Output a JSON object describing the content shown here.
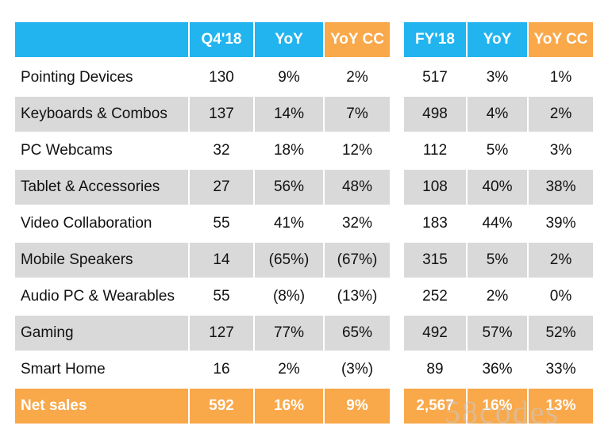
{
  "table": {
    "left_headers": [
      "Q4'18",
      "YoY",
      "YoY CC"
    ],
    "right_headers": [
      "FY'18",
      "YoY",
      "YoY CC"
    ],
    "rows": [
      [
        "Pointing Devices",
        "130",
        "9%",
        "2%",
        "517",
        "3%",
        "1%"
      ],
      [
        "Keyboards & Combos",
        "137",
        "14%",
        "7%",
        "498",
        "4%",
        "2%"
      ],
      [
        "PC Webcams",
        "32",
        "18%",
        "12%",
        "112",
        "5%",
        "3%"
      ],
      [
        "Tablet & Accessories",
        "27",
        "56%",
        "48%",
        "108",
        "40%",
        "38%"
      ],
      [
        "Video Collaboration",
        "55",
        "41%",
        "32%",
        "183",
        "44%",
        "39%"
      ],
      [
        "Mobile Speakers",
        "14",
        "(65%)",
        "(67%)",
        "315",
        "5%",
        "2%"
      ],
      [
        "Audio PC & Wearables",
        "55",
        "(8%)",
        "(13%)",
        "252",
        "2%",
        "0%"
      ],
      [
        "Gaming",
        "127",
        "77%",
        "65%",
        "492",
        "57%",
        "52%"
      ],
      [
        "Smart Home",
        "16",
        "2%",
        "(3%)",
        "89",
        "36%",
        "33%"
      ]
    ],
    "total": [
      "Net sales",
      "592",
      "16%",
      "9%",
      "2,567",
      "16%",
      "13%"
    ]
  },
  "watermark": "58codes"
}
